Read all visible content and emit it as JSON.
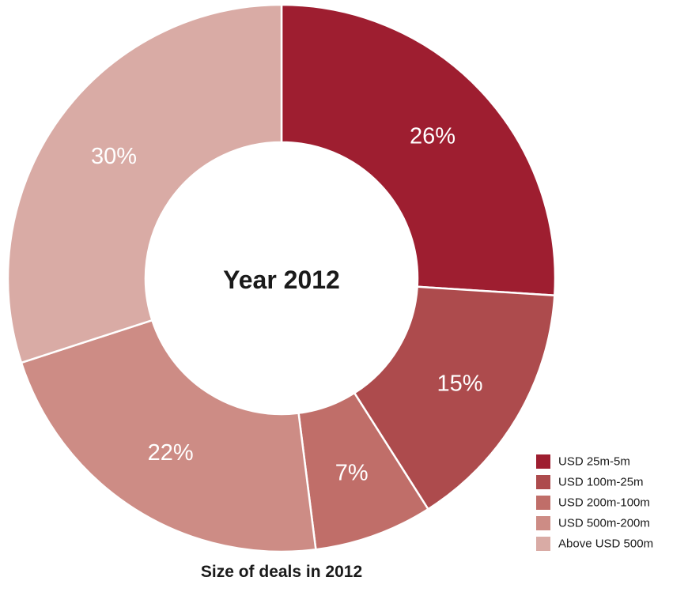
{
  "chart_data": {
    "type": "pie",
    "center_label": "Year 2012",
    "title": "Size of deals in 2012",
    "legend_position": "bottom-right",
    "slices": [
      {
        "label": "USD 25m-5m",
        "value": 26,
        "value_label": "26%",
        "color": "#9e1e30"
      },
      {
        "label": "USD 100m-25m",
        "value": 15,
        "value_label": "15%",
        "color": "#ad4b4d"
      },
      {
        "label": "USD 200m-100m",
        "value": 7,
        "value_label": "7%",
        "color": "#c06e69"
      },
      {
        "label": "USD 500m-200m",
        "value": 22,
        "value_label": "22%",
        "color": "#cd8c85"
      },
      {
        "label": "Above USD 500m",
        "value": 30,
        "value_label": "30%",
        "color": "#d9aba5"
      }
    ]
  }
}
